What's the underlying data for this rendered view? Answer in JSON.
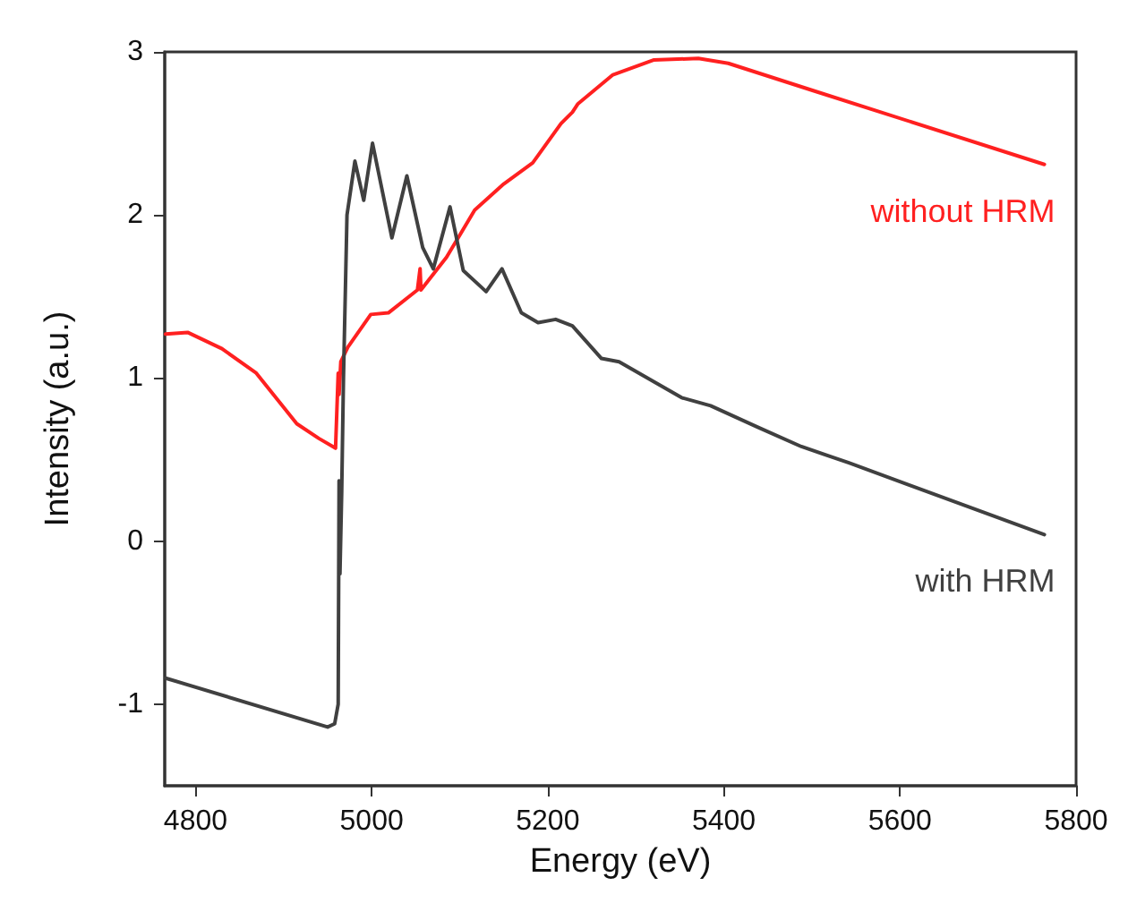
{
  "chart_data": {
    "type": "line",
    "xlabel": "Energy (eV)",
    "ylabel": "Intensity (a.u.)",
    "xlim": [
      4765,
      5800
    ],
    "xticks": [
      4800,
      5000,
      5200,
      5400,
      5600,
      5800
    ],
    "ylim": [
      -1.5,
      3
    ],
    "yticks": [
      -1,
      0,
      1,
      2,
      3
    ],
    "grid": false,
    "legend": false,
    "marker": "none",
    "line_style": "solid",
    "series": [
      {
        "name": "without HRM",
        "color": "#ff2020",
        "x": [
          4766,
          4791,
          4830,
          4869,
          4915,
          4940,
          4959,
          4962,
          4963,
          4965,
          4973,
          4999,
          5019,
          5052,
          5055,
          5056,
          5085,
          5117,
          5150,
          5183,
          5215,
          5228,
          5234,
          5274,
          5320,
          5371,
          5405,
          5503,
          5764
        ],
        "values": [
          1.27,
          1.28,
          1.18,
          1.03,
          0.72,
          0.63,
          0.57,
          1.03,
          0.9,
          1.1,
          1.19,
          1.39,
          1.4,
          1.54,
          1.67,
          1.54,
          1.74,
          2.03,
          2.19,
          2.32,
          2.56,
          2.63,
          2.68,
          2.86,
          2.95,
          2.96,
          2.93,
          2.76,
          2.31
        ]
      },
      {
        "name": "with HRM",
        "color": "#404040",
        "x": [
          4766,
          4950,
          4958,
          4962,
          4963,
          4964,
          4966,
          4968,
          4972,
          4981,
          4991,
          5001,
          5023,
          5040,
          5058,
          5070,
          5089,
          5104,
          5124,
          5130,
          5148,
          5170,
          5189,
          5209,
          5228,
          5261,
          5281,
          5352,
          5385,
          5438,
          5488,
          5542,
          5764
        ],
        "values": [
          -0.84,
          -1.14,
          -1.12,
          -1.0,
          0.37,
          -0.2,
          0.3,
          1.0,
          2.0,
          2.33,
          2.09,
          2.44,
          1.86,
          2.24,
          1.8,
          1.67,
          2.05,
          1.66,
          1.56,
          1.53,
          1.67,
          1.4,
          1.34,
          1.36,
          1.32,
          1.12,
          1.1,
          0.88,
          0.83,
          0.7,
          0.58,
          0.48,
          0.04
        ]
      }
    ]
  }
}
